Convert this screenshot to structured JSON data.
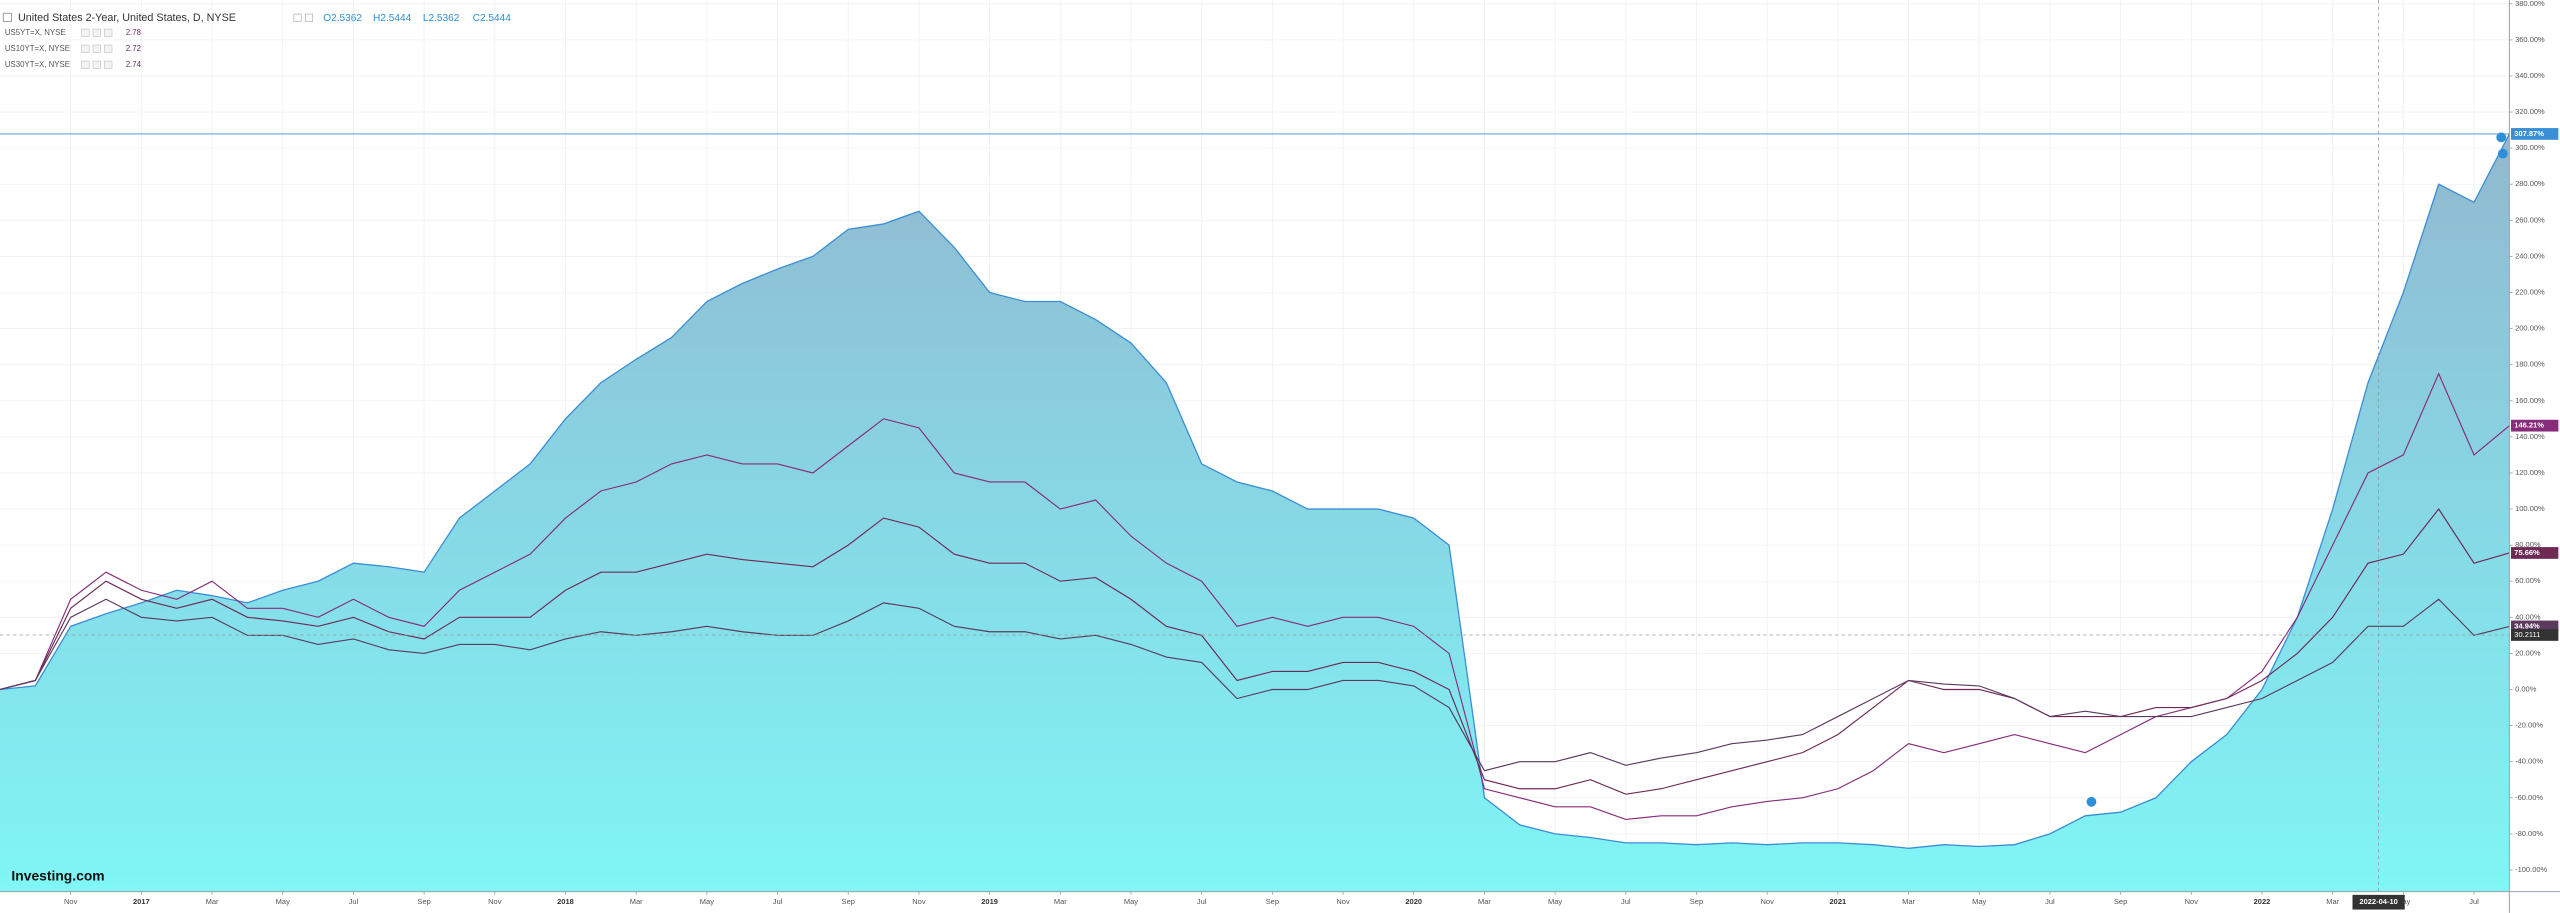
{
  "chart_data": {
    "type": "line",
    "title": "United States 2-Year, United States, D, NYSE",
    "ohlc": [
      "O2.5362",
      "H2.5444",
      "L2.5362",
      "C2.5444"
    ],
    "logo": "Investing.com",
    "x": [
      "2016-09",
      "2016-10",
      "2016-11",
      "2016-12",
      "2017-01",
      "2017-02",
      "2017-03",
      "2017-04",
      "2017-05",
      "2017-06",
      "2017-07",
      "2017-08",
      "2017-09",
      "2017-10",
      "2017-11",
      "2017-12",
      "2018-01",
      "2018-02",
      "2018-03",
      "2018-04",
      "2018-05",
      "2018-06",
      "2018-07",
      "2018-08",
      "2018-09",
      "2018-10",
      "2018-11",
      "2018-12",
      "2019-01",
      "2019-02",
      "2019-03",
      "2019-04",
      "2019-05",
      "2019-06",
      "2019-07",
      "2019-08",
      "2019-09",
      "2019-10",
      "2019-11",
      "2019-12",
      "2020-01",
      "2020-02",
      "2020-03",
      "2020-04",
      "2020-05",
      "2020-06",
      "2020-07",
      "2020-08",
      "2020-09",
      "2020-10",
      "2020-11",
      "2020-12",
      "2021-01",
      "2021-02",
      "2021-03",
      "2021-04",
      "2021-05",
      "2021-06",
      "2021-07",
      "2021-08",
      "2021-09",
      "2021-10",
      "2021-11",
      "2021-12",
      "2022-01",
      "2022-02",
      "2022-03",
      "2022-04",
      "2022-05",
      "2022-06",
      "2022-07",
      "2022-08"
    ],
    "series": [
      {
        "color": "#3a8fd4",
        "style": "area",
        "end_label": "307.87%",
        "values": [
          0,
          2,
          35,
          42,
          48,
          55,
          52,
          48,
          55,
          60,
          70,
          68,
          65,
          95,
          110,
          125,
          150,
          170,
          183,
          195,
          215,
          225,
          233,
          240,
          255,
          258,
          265,
          245,
          220,
          215,
          215,
          205,
          192,
          170,
          125,
          115,
          110,
          100,
          100,
          100,
          95,
          80,
          -60,
          -75,
          -80,
          -82,
          -85,
          -85,
          -86,
          -85,
          -86,
          -85,
          -85,
          -86,
          -88,
          -86,
          -87,
          -86,
          -80,
          -70,
          -68,
          -60,
          -40,
          -25,
          0,
          40,
          100,
          170,
          220,
          280,
          270,
          307.87
        ]
      },
      {
        "name": "US5YT=X, NYSE",
        "color": "#862c7a",
        "legend_value": 2.78,
        "end_label": "146.21%",
        "values": [
          0,
          5,
          50,
          65,
          55,
          50,
          60,
          45,
          45,
          40,
          50,
          40,
          35,
          55,
          65,
          75,
          95,
          110,
          115,
          125,
          130,
          125,
          125,
          120,
          135,
          150,
          145,
          120,
          115,
          115,
          100,
          105,
          85,
          70,
          60,
          35,
          40,
          35,
          40,
          40,
          35,
          20,
          -55,
          -60,
          -65,
          -65,
          -72,
          -70,
          -70,
          -65,
          -62,
          -60,
          -55,
          -45,
          -30,
          -35,
          -30,
          -25,
          -30,
          -35,
          -25,
          -15,
          -10,
          -5,
          10,
          40,
          80,
          120,
          130,
          175,
          130,
          146.21
        ]
      },
      {
        "name": "US10YT=X, NYSE",
        "color": "#6e2a55",
        "legend_value": 2.72,
        "end_label": "75.66%",
        "values": [
          0,
          5,
          45,
          60,
          50,
          45,
          50,
          40,
          38,
          35,
          40,
          32,
          28,
          40,
          40,
          40,
          55,
          65,
          65,
          70,
          75,
          72,
          70,
          68,
          80,
          95,
          90,
          75,
          70,
          70,
          60,
          62,
          50,
          35,
          30,
          5,
          10,
          10,
          15,
          15,
          10,
          0,
          -50,
          -55,
          -55,
          -50,
          -58,
          -55,
          -50,
          -45,
          -40,
          -35,
          -25,
          -10,
          5,
          0,
          0,
          -5,
          -15,
          -15,
          -15,
          -10,
          -10,
          -5,
          5,
          20,
          40,
          70,
          75,
          100,
          70,
          75.66
        ]
      },
      {
        "name": "US30YT=X, NYSE",
        "color": "#5b3a5e",
        "legend_value": 2.74,
        "end_label": "34.94%",
        "values": [
          0,
          5,
          40,
          50,
          40,
          38,
          40,
          30,
          30,
          25,
          28,
          22,
          20,
          25,
          25,
          22,
          28,
          32,
          30,
          32,
          35,
          32,
          30,
          30,
          38,
          48,
          45,
          35,
          32,
          32,
          28,
          30,
          25,
          18,
          15,
          -5,
          0,
          0,
          5,
          5,
          2,
          -10,
          -45,
          -40,
          -40,
          -35,
          -42,
          -38,
          -35,
          -30,
          -28,
          -25,
          -15,
          -5,
          5,
          3,
          2,
          -5,
          -15,
          -12,
          -15,
          -15,
          -15,
          -10,
          -5,
          5,
          15,
          35,
          35,
          50,
          30,
          34.94
        ]
      }
    ],
    "xlim": [
      "2016-09",
      "2022-08"
    ],
    "xticks": [
      {
        "value": "2016-11",
        "label": "Nov"
      },
      {
        "value": "2017-01",
        "label": "2017"
      },
      {
        "value": "2017-03",
        "label": "Mar"
      },
      {
        "value": "2017-05",
        "label": "May"
      },
      {
        "value": "2017-07",
        "label": "Jul"
      },
      {
        "value": "2017-09",
        "label": "Sep"
      },
      {
        "value": "2017-11",
        "label": "Nov"
      },
      {
        "value": "2018-01",
        "label": "2018"
      },
      {
        "value": "2018-03",
        "label": "Mar"
      },
      {
        "value": "2018-05",
        "label": "May"
      },
      {
        "value": "2018-07",
        "label": "Jul"
      },
      {
        "value": "2018-09",
        "label": "Sep"
      },
      {
        "value": "2018-11",
        "label": "Nov"
      },
      {
        "value": "2019-01",
        "label": "2019"
      },
      {
        "value": "2019-03",
        "label": "Mar"
      },
      {
        "value": "2019-05",
        "label": "May"
      },
      {
        "value": "2019-07",
        "label": "Jul"
      },
      {
        "value": "2019-09",
        "label": "Sep"
      },
      {
        "value": "2019-11",
        "label": "Nov"
      },
      {
        "value": "2020-01",
        "label": "2020"
      },
      {
        "value": "2020-03",
        "label": "Mar"
      },
      {
        "value": "2020-05",
        "label": "May"
      },
      {
        "value": "2020-07",
        "label": "Jul"
      },
      {
        "value": "2020-09",
        "label": "Sep"
      },
      {
        "value": "2020-11",
        "label": "Nov"
      },
      {
        "value": "2021-01",
        "label": "2021"
      },
      {
        "value": "2021-03",
        "label": "Mar"
      },
      {
        "value": "2021-05",
        "label": "May"
      },
      {
        "value": "2021-07",
        "label": "Jul"
      },
      {
        "value": "2021-09",
        "label": "Sep"
      },
      {
        "value": "2021-11",
        "label": "Nov"
      },
      {
        "value": "2022-01",
        "label": "2022"
      },
      {
        "value": "2022-03",
        "label": "Mar"
      },
      {
        "value": "2022-05",
        "label": "May"
      },
      {
        "value": "2022-07",
        "label": "Jul"
      }
    ],
    "ylim": [
      -112,
      382
    ],
    "yticks": [
      {
        "value": -100,
        "label": "-100.00%"
      },
      {
        "value": -80,
        "label": "-80.00%"
      },
      {
        "value": -60,
        "label": "-60.00%"
      },
      {
        "value": -40,
        "label": "-40.00%"
      },
      {
        "value": -20,
        "label": "-20.00%"
      },
      {
        "value": 0,
        "label": "0.00%"
      },
      {
        "value": 20,
        "label": "20.00%"
      },
      {
        "value": 40,
        "label": "40.00%"
      },
      {
        "value": 60,
        "label": "60.00%"
      },
      {
        "value": 80,
        "label": "80.00%"
      },
      {
        "value": 100,
        "label": "100.00%"
      },
      {
        "value": 120,
        "label": "120.00%"
      },
      {
        "value": 140,
        "label": "140.00%"
      },
      {
        "value": 160,
        "label": "160.00%"
      },
      {
        "value": 180,
        "label": "180.00%"
      },
      {
        "value": 200,
        "label": "200.00%"
      },
      {
        "value": 220,
        "label": "220.00%"
      },
      {
        "value": 240,
        "label": "240.00%"
      },
      {
        "value": 260,
        "label": "260.00%"
      },
      {
        "value": 280,
        "label": "280.00%"
      },
      {
        "value": 300,
        "label": "300.00%"
      },
      {
        "value": 320,
        "label": "320.00%"
      },
      {
        "value": 340,
        "label": "340.00%"
      },
      {
        "value": 360,
        "label": "360.00%"
      },
      {
        "value": 380,
        "label": "380.00%"
      }
    ],
    "grid": true,
    "crosshair": {
      "x": "2022-04-10",
      "y": 30.2111
    }
  }
}
